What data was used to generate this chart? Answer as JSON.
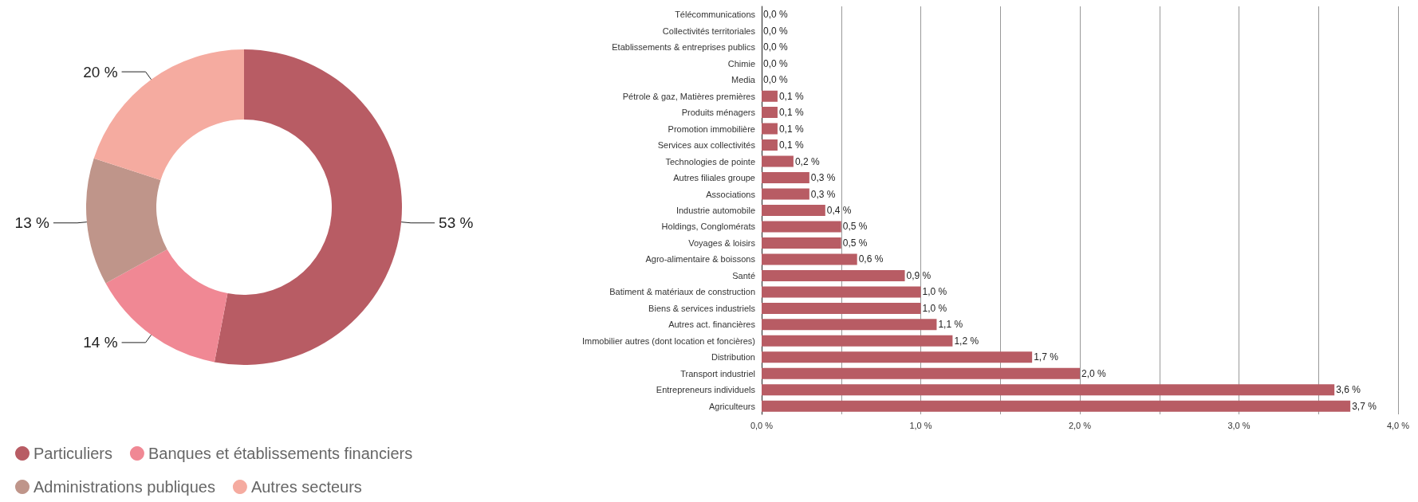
{
  "chart_data": [
    {
      "type": "donut",
      "categories": [
        "Particuliers",
        "Banques et établissements financiers",
        "Administrations publiques",
        "Autres secteurs"
      ],
      "values": [
        53,
        14,
        13,
        20
      ],
      "colors": [
        "#b85c64",
        "#f08894",
        "#bf958a",
        "#f5aba0"
      ],
      "value_labels": [
        "53 %",
        "14 %",
        "13 %",
        "20 %"
      ],
      "legend": "bottom left"
    },
    {
      "type": "bar",
      "orientation": "horizontal",
      "categories": [
        "Télécommunications",
        "Collectivités territoriales",
        "Etablissements & entreprises publics",
        "Chimie",
        "Media",
        "Pétrole & gaz, Matières premières",
        "Produits ménagers",
        "Promotion immobilière",
        "Services aux collectivités",
        "Technologies de pointe",
        "Autres filiales groupe",
        "Associations",
        "Industrie automobile",
        "Holdings, Conglomérats",
        "Voyages & loisirs",
        "Agro-alimentaire & boissons",
        "Santé",
        "Batiment & matériaux de construction",
        "Biens & services industriels",
        "Autres act. financières",
        "Immobilier autres (dont location et foncières)",
        "Distribution",
        "Transport industriel",
        "Entrepreneurs individuels",
        "Agriculteurs"
      ],
      "values": [
        0,
        0,
        0,
        0,
        0,
        0.1,
        0.1,
        0.1,
        0.1,
        0.2,
        0.3,
        0.3,
        0.4,
        0.5,
        0.5,
        0.6,
        0.9,
        1.0,
        1.0,
        1.1,
        1.2,
        1.7,
        2.0,
        3.6,
        3.7
      ],
      "value_labels": [
        "0,0 %",
        "0,0 %",
        "0,0 %",
        "0,0 %",
        "0,0 %",
        "0,1 %",
        "0,1 %",
        "0,1 %",
        "0,1 %",
        "0,2 %",
        "0,3 %",
        "0,3 %",
        "0,4 %",
        "0,5 %",
        "0,5 %",
        "0,6 %",
        "0,9 %",
        "1,0 %",
        "1,0 %",
        "1,1 %",
        "1,2 %",
        "1,7 %",
        "2,0 %",
        "3,6 %",
        "3,7 %"
      ],
      "color": "#b85c64",
      "xlim": [
        0,
        4
      ],
      "xticks": [
        {
          "value": 0,
          "label": "0,0 %"
        },
        {
          "value": 0.5,
          "label": null
        },
        {
          "value": 1,
          "label": "1,0 %"
        },
        {
          "value": 1.5,
          "label": null
        },
        {
          "value": 2,
          "label": "2,0 %"
        },
        {
          "value": 2.5,
          "label": null
        },
        {
          "value": 3,
          "label": "3,0 %"
        },
        {
          "value": 3.5,
          "label": null
        },
        {
          "value": 4,
          "label": "4,0 %"
        }
      ],
      "grid": true
    }
  ]
}
